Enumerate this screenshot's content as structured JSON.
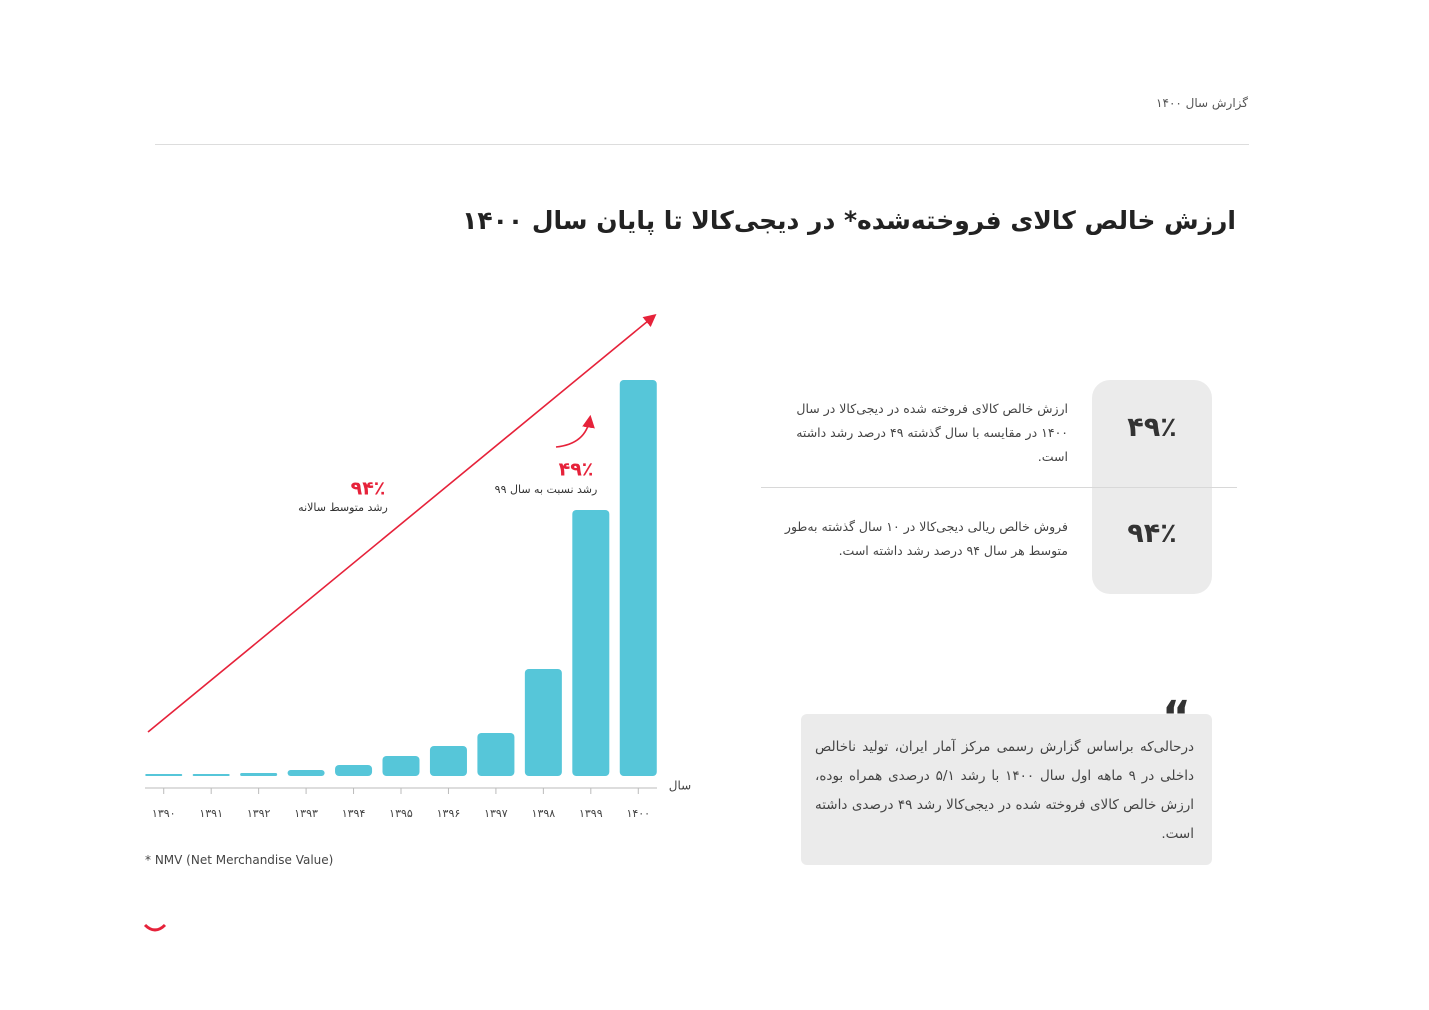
{
  "header": {
    "title": "گزارش سال ۱۴۰۰"
  },
  "title": "ارزش خالص کالای فروخته‌شده* در دیجی‌کالا تا پایان سال ۱۴۰۰",
  "chart_data": {
    "type": "bar",
    "categories": [
      "۱۳۹۰",
      "۱۳۹۱",
      "۱۳۹۲",
      "۱۳۹۳",
      "۱۳۹۴",
      "۱۳۹۵",
      "۱۳۹۶",
      "۱۳۹۷",
      "۱۳۹۸",
      "۱۳۹۹",
      "۱۴۰۰"
    ],
    "values": [
      2,
      2,
      3,
      6,
      11,
      20,
      30,
      43,
      107,
      266,
      396
    ],
    "color": "#56c6d9",
    "ylim": [
      0,
      400
    ],
    "x_label": "سال",
    "annotations": [
      {
        "value": "۹۴٪",
        "text": "رشد متوسط سالانه"
      },
      {
        "value": "۴۹٪",
        "text": "رشد نسبت به سال ۹۹"
      }
    ]
  },
  "stats": [
    {
      "value": "۴۹٪",
      "text": "ارزش خالص کالای فروخته شده در دیجی‌کالا در سال ۱۴۰۰ در مقایسه با سال گذشته ۴۹ درصد رشد داشته است."
    },
    {
      "value": "۹۴٪",
      "text": "فروش خالص ریالی دیجی‌کالا در ۱۰ سال گذشته به‌طور متوسط هر سال ۹۴ درصد رشد داشته است."
    }
  ],
  "quote": {
    "mark": "“",
    "text": "درحالی‌که براساس گزارش رسمی مرکز آمار ایران، تولید ناخالص داخلی در ۹ ماهه اول سال ۱۴۰۰ با رشد ۵/۱ درصدی همراه بوده، ارزش خالص کالای فروخته شده در دیجی‌کالا رشد ۴۹ درصدی داشته است."
  },
  "footnote": "* NMV (Net Merchandise Value)"
}
